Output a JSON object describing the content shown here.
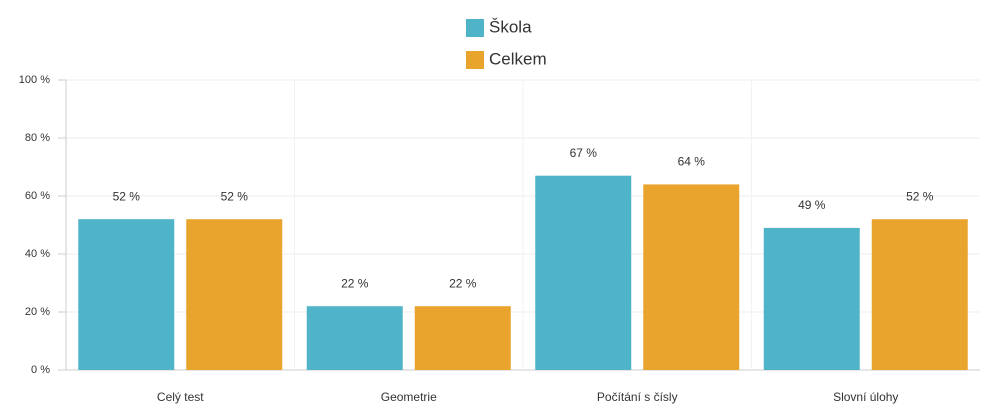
{
  "chart_data": {
    "type": "bar",
    "categories": [
      "Celý test",
      "Geometrie",
      "Počítání s čísly",
      "Slovní úlohy"
    ],
    "series": [
      {
        "name": "Škola",
        "color": "#50b4c8",
        "values": [
          52,
          22,
          67,
          49
        ],
        "value_labels": [
          "52 %",
          "22 %",
          "67 %",
          "49 %"
        ]
      },
      {
        "name": "Celkem",
        "color": "#e9a42e",
        "values": [
          52,
          22,
          64,
          52
        ],
        "value_labels": [
          "52 %",
          "22 %",
          "64 %",
          "52 %"
        ]
      }
    ],
    "ylim": [
      0,
      100
    ],
    "yticks": [
      {
        "value": 0,
        "label": "0 %"
      },
      {
        "value": 20,
        "label": "20 %"
      },
      {
        "value": 40,
        "label": "40 %"
      },
      {
        "value": 60,
        "label": "60 %"
      },
      {
        "value": 80,
        "label": "80 %"
      },
      {
        "value": 100,
        "label": "100 %"
      }
    ],
    "grid": true,
    "legend": "top"
  }
}
